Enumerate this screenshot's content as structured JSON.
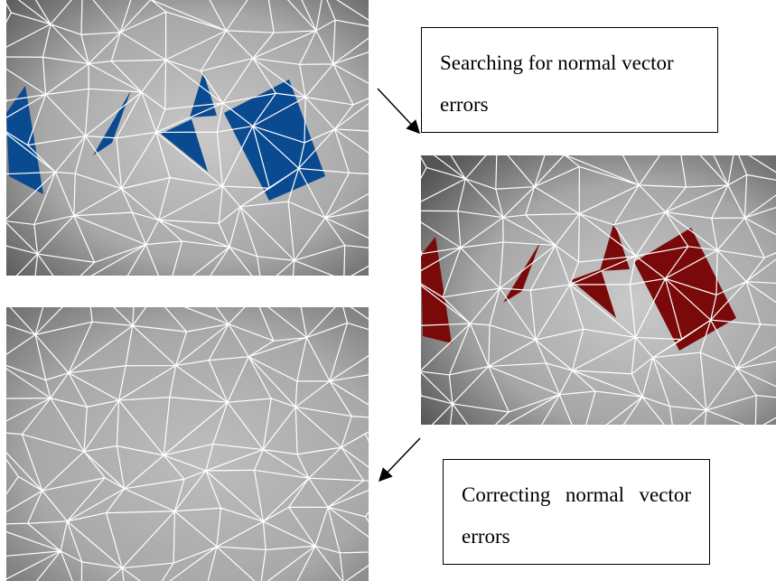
{
  "labels": {
    "search": "Searching for normal vector errors",
    "correct": "Correcting normal vector errors"
  }
}
